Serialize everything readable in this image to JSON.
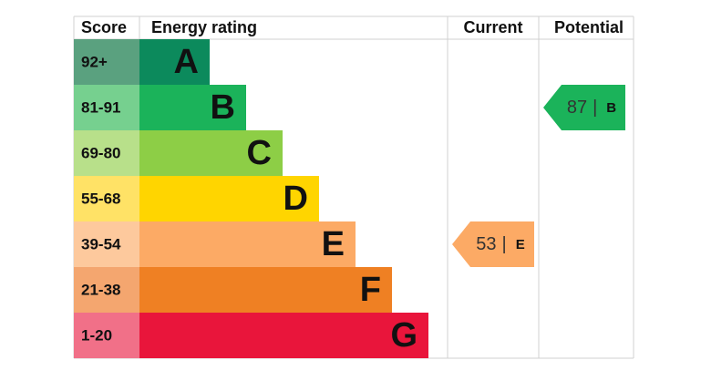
{
  "chart_data": {
    "type": "epc",
    "headers": {
      "score": "Score",
      "rating": "Energy rating",
      "current": "Current",
      "potential": "Potential"
    },
    "bands": [
      {
        "score": "92+",
        "letter": "A",
        "color": "#0c8a5c",
        "score_color": "#5aa17f"
      },
      {
        "score": "81-91",
        "letter": "B",
        "color": "#1bb35a",
        "score_color": "#76d08f"
      },
      {
        "score": "69-80",
        "letter": "C",
        "color": "#8dce46",
        "score_color": "#b8e08a"
      },
      {
        "score": "55-68",
        "letter": "D",
        "color": "#ffd500",
        "score_color": "#ffe266"
      },
      {
        "score": "39-54",
        "letter": "E",
        "color": "#fcaa65",
        "score_color": "#fdc99d"
      },
      {
        "score": "21-38",
        "letter": "F",
        "color": "#ef8023",
        "score_color": "#f4a66f"
      },
      {
        "score": "1-20",
        "letter": "G",
        "color": "#e9153b",
        "score_color": "#f17088"
      }
    ],
    "current": {
      "value": 53,
      "separator": "|",
      "letter": "E"
    },
    "potential": {
      "value": 87,
      "separator": "|",
      "letter": "B"
    }
  }
}
